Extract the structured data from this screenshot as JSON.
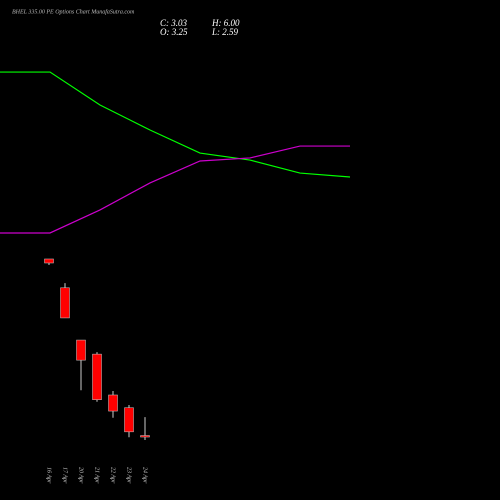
{
  "title": "BHEL 335.00 PE Options Chart MunafaSutra.com",
  "ohlc": {
    "close": "C: 3.03",
    "high": "H: 6.00",
    "open": "O: 3.25",
    "low": "L: 2.59"
  },
  "chart_data": [
    {
      "type": "candlestick",
      "categories": [
        "16 Apr",
        "17 Apr",
        "20 Apr",
        "21 Apr",
        "22 Apr",
        "23 Apr",
        "24 Apr"
      ],
      "open": [
        29.6,
        25.3,
        17.5,
        15.4,
        9.3,
        7.4,
        3.25
      ],
      "high": [
        29.6,
        26.0,
        17.5,
        15.7,
        9.9,
        7.8,
        6.0
      ],
      "low": [
        28.7,
        20.8,
        10.0,
        8.3,
        5.9,
        3.0,
        2.59
      ],
      "close": [
        29.0,
        20.8,
        14.5,
        8.6,
        6.9,
        3.8,
        3.03
      ],
      "up_color": "#00cc00",
      "down_color": "#ff0000",
      "ylim": [
        0,
        32
      ]
    },
    {
      "type": "line",
      "categories": [
        null,
        null,
        null,
        null,
        null,
        null,
        null,
        null
      ],
      "series": [
        {
          "color": "#00ff00",
          "values": [
            93.3,
            93.3,
            75,
            61.1,
            48.3,
            44.4,
            37.2,
            35
          ]
        },
        {
          "color": "#cc00cc",
          "values": [
            3.9,
            3.9,
            16.7,
            31.7,
            43.9,
            45.6,
            52.2,
            52.2
          ]
        }
      ],
      "ylim": [
        0,
        100
      ]
    }
  ]
}
